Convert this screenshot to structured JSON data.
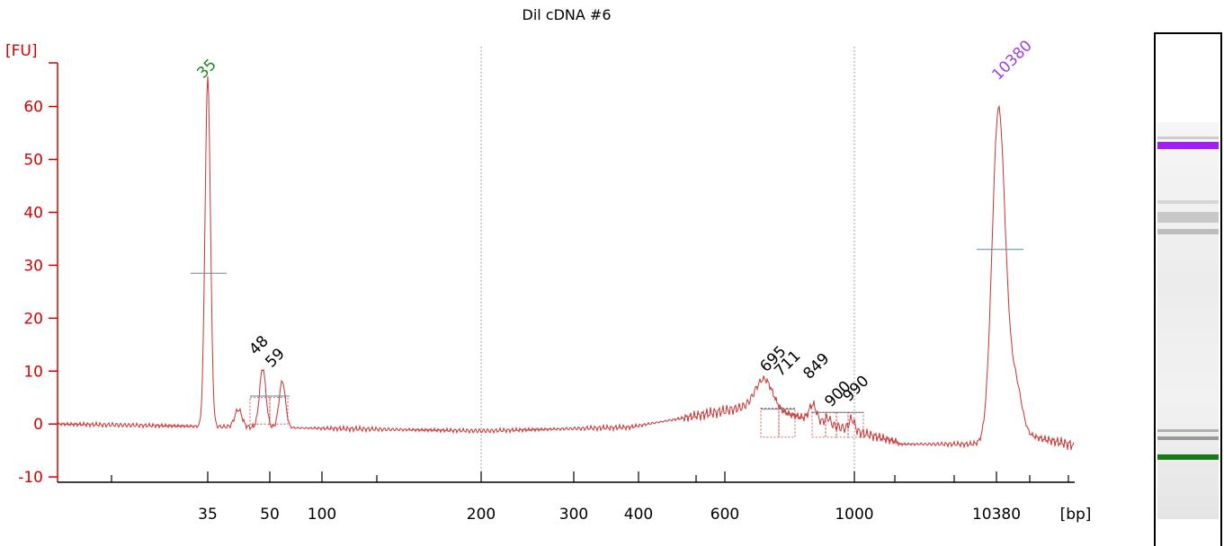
{
  "chart_data": {
    "type": "line",
    "title": "Dil cDNA #6",
    "ylabel": "[FU]",
    "xlabel": "[bp]",
    "ylim": [
      -11,
      73
    ],
    "yticks": [
      -10,
      0,
      10,
      20,
      30,
      40,
      50,
      60
    ],
    "x_tick_labels": [
      "35",
      "50",
      "100",
      "200",
      "300",
      "400",
      "600",
      "1000",
      "10380"
    ],
    "grid": "dotted vertical lines at 200 and 1000",
    "series": [
      {
        "x": [
          "35",
          "48",
          "59",
          "695",
          "711",
          "849",
          "900",
          "990",
          "10380"
        ],
        "peak_heights": [
          66,
          11.5,
          9,
          8.5,
          8.5,
          6.5,
          2.5,
          3.5,
          66
        ]
      }
    ],
    "peaks": [
      {
        "label": "35",
        "color": "#1a8a1a",
        "height": 66
      },
      {
        "label": "48",
        "color": "#000000",
        "height": 11.5
      },
      {
        "label": "59",
        "color": "#000000",
        "height": 9
      },
      {
        "label": "695",
        "color": "#000000",
        "height": 8.5
      },
      {
        "label": "711",
        "color": "#000000",
        "height": 8.5
      },
      {
        "label": "849",
        "color": "#000000",
        "height": 6.5
      },
      {
        "label": "900",
        "color": "#000000",
        "height": 2.5
      },
      {
        "label": "990",
        "color": "#000000",
        "height": 3.5
      },
      {
        "label": "10380",
        "color": "#a040e0",
        "height": 66
      }
    ],
    "colors": {
      "axis": "#d40000",
      "trace": "#c83232",
      "gridline": "#888888",
      "marker": "#5a8a9a"
    }
  },
  "gel": {
    "bands": [
      {
        "name": "upper-marker",
        "color": "#8a2be2",
        "fu": 66
      },
      {
        "name": "lower-marker",
        "color": "#1a8a1a",
        "fu": 66
      }
    ]
  }
}
